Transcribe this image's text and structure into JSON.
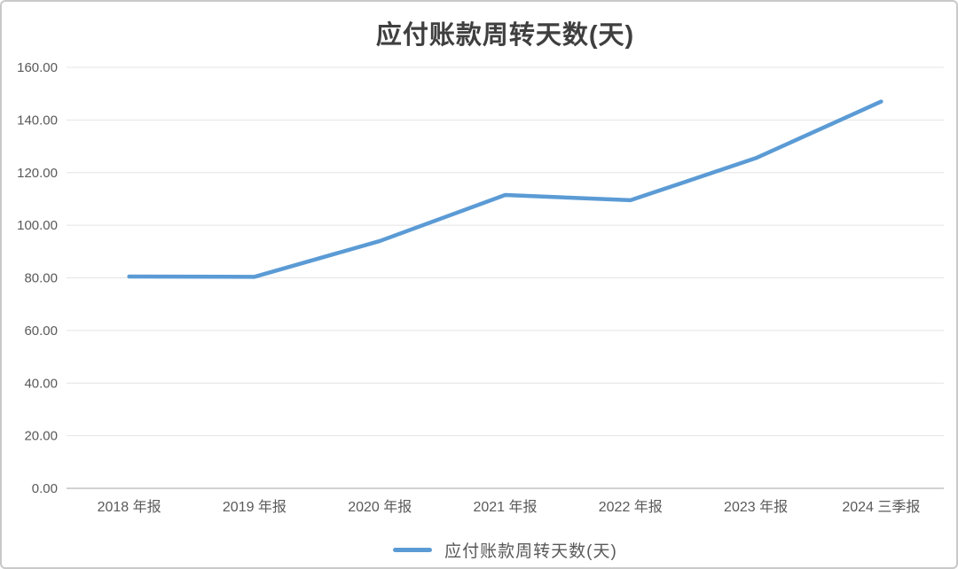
{
  "chart_data": {
    "type": "line",
    "title": "应付账款周转天数(天)",
    "categories": [
      "2018 年报",
      "2019 年报",
      "2020 年报",
      "2021 年报",
      "2022 年报",
      "2023 年报",
      "2024 三季报"
    ],
    "series": [
      {
        "name": "应付账款周转天数(天)",
        "values": [
          80.5,
          80.4,
          94.0,
          111.5,
          109.5,
          125.5,
          147.0
        ],
        "color": "#5B9BD5"
      }
    ],
    "xlabel": "",
    "ylabel": "",
    "ylim": [
      0,
      160
    ],
    "ytick_step": 20,
    "ytick_labels": [
      "0.00",
      "20.00",
      "40.00",
      "60.00",
      "80.00",
      "100.00",
      "120.00",
      "140.00",
      "160.00"
    ],
    "grid": true,
    "legend_position": "bottom"
  },
  "colors": {
    "line": "#5B9BD5",
    "gridline": "#E4E4E4",
    "axis_line": "#C4C4C4",
    "tick_text": "#595959",
    "title_text": "#3F3F3F",
    "border": "#C9C9C9",
    "background": "#FFFFFF"
  }
}
